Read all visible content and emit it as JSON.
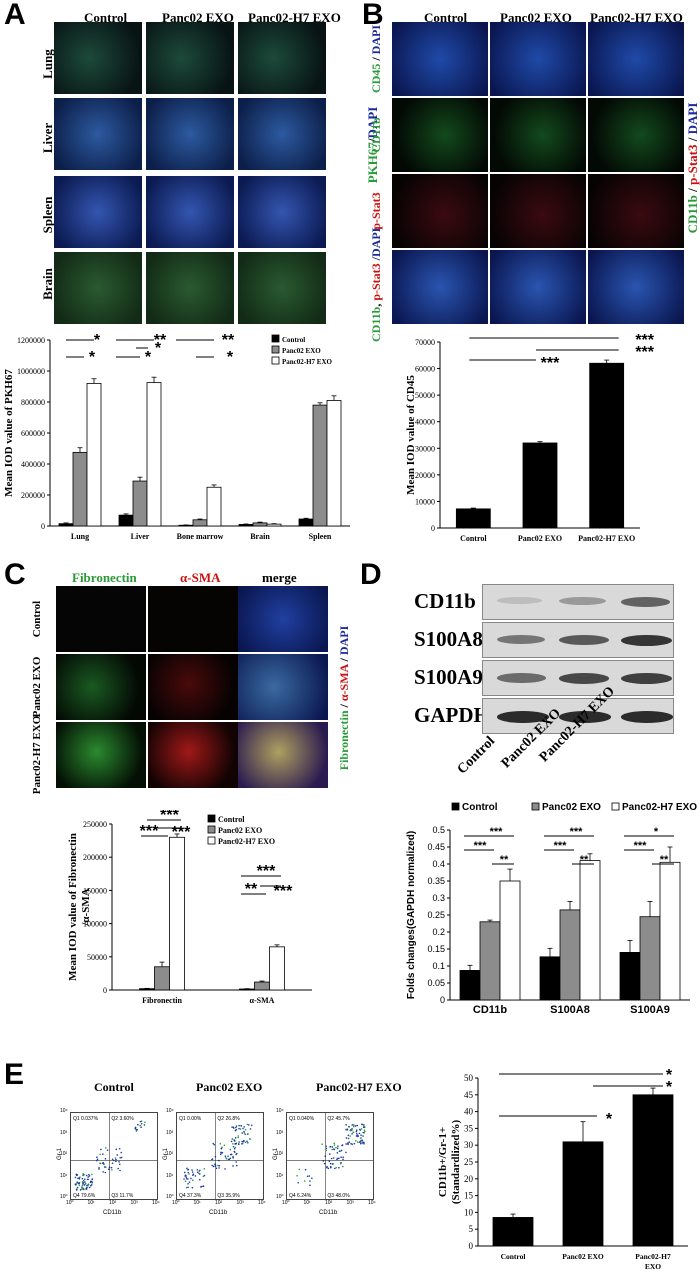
{
  "panel_letters": [
    "A",
    "B",
    "C",
    "D",
    "E"
  ],
  "colors": {
    "control_bar": "#000000",
    "panc02_bar": "#8c8c8c",
    "panc02h7_bar": "#ffffff",
    "pkh67_green": "#2a9a3a",
    "dapi_blue": "#1a2a9a",
    "red_stain": "#cc1111"
  },
  "panel_a": {
    "columns": [
      "Control",
      "Panc02 EXO",
      "Panc02-H7 EXO"
    ],
    "rows": [
      "Lung",
      "Liver",
      "Spleen",
      "Brain"
    ],
    "side_label_green": "PKH67",
    "side_label_sep": "/",
    "side_label_blue": "DAPI"
  },
  "panel_b": {
    "columns": [
      "Control",
      "Panc02 EXO",
      "Panc02-H7 EXO"
    ],
    "rows": [
      {
        "parts": [
          {
            "t": "CD45",
            "c": "#2a9a3a"
          },
          {
            "t": " / ",
            "c": "#000"
          },
          {
            "t": "DAPI",
            "c": "#1a2a9a"
          }
        ]
      },
      {
        "parts": [
          {
            "t": "CD11b",
            "c": "#2a9a3a"
          }
        ]
      },
      {
        "parts": [
          {
            "t": "p-Stat3",
            "c": "#cc1111"
          }
        ]
      },
      {
        "parts": [
          {
            "t": "CD11b",
            "c": "#2a9a3a"
          },
          {
            "t": ", ",
            "c": "#000"
          },
          {
            "t": "p-Stat3",
            "c": "#cc1111"
          },
          {
            "t": " /DAPI",
            "c": "#1a2a9a"
          }
        ]
      }
    ],
    "side_label": [
      {
        "t": "CD11b",
        "c": "#2a9a3a"
      },
      {
        "t": " / ",
        "c": "#000"
      },
      {
        "t": "p-Stat3",
        "c": "#cc1111"
      },
      {
        "t": " / ",
        "c": "#000"
      },
      {
        "t": "DAPI",
        "c": "#1a2a9a"
      }
    ]
  },
  "panel_c": {
    "columns": [
      {
        "label": "Fibronectin",
        "color": "#2a9a3a"
      },
      {
        "label": "α-SMA",
        "color": "#cc1111"
      },
      {
        "label": "merge",
        "color": "#000000"
      }
    ],
    "rows": [
      "Control",
      "Panc02 EXO",
      "Panc02-H7 EXO"
    ],
    "side_label": [
      {
        "t": "Fibronectin",
        "c": "#2a9a3a"
      },
      {
        "t": " / ",
        "c": "#000"
      },
      {
        "t": "α-SMA",
        "c": "#cc1111"
      },
      {
        "t": " / ",
        "c": "#000"
      },
      {
        "t": "DAPI",
        "c": "#1a2a9a"
      }
    ]
  },
  "panel_d": {
    "blot_rows": [
      "CD11b",
      "S100A8",
      "S100A9",
      "GAPDH"
    ],
    "lanes": [
      "Control",
      "Panc02 EXO",
      "Panc02-H7 EXO"
    ]
  },
  "panel_e": {
    "flow_titles": [
      "Control",
      "Panc02 EXO",
      "Panc02-H7 EXO"
    ],
    "quadrant_labels": [
      [
        "Q1 0.037%",
        "Q2 3.60%",
        "Q4 79.6%",
        "Q3 11.7%"
      ],
      [
        "Q1 0.00%",
        "Q2 26.8%",
        "Q4 37.3%",
        "Q3 35.9%"
      ],
      [
        "Q1 0.040%",
        "Q2 45.7%",
        "Q4 6.24%",
        "Q3 48.0%"
      ]
    ],
    "flow_xlabel": "CD11b",
    "flow_ylabel": "Gr-1",
    "flow_ticks": [
      "10⁰",
      "10¹",
      "10²",
      "10³",
      "10⁴"
    ]
  },
  "chart_data": [
    {
      "type": "bar",
      "panel": "A",
      "categories": [
        "Lung",
        "Liver",
        "Bone marrow",
        "Brain",
        "Spleen"
      ],
      "series": [
        {
          "name": "Control",
          "values": [
            15000,
            70000,
            5000,
            10000,
            45000
          ],
          "errors": [
            5000,
            8000,
            2000,
            3000,
            5000
          ]
        },
        {
          "name": "Panc02 EXO",
          "values": [
            475000,
            290000,
            40000,
            20000,
            780000
          ],
          "errors": [
            30000,
            25000,
            5000,
            5000,
            15000
          ]
        },
        {
          "name": "Panc02-H7 EXO",
          "values": [
            920000,
            925000,
            250000,
            12000,
            810000
          ],
          "errors": [
            30000,
            35000,
            15000,
            3000,
            30000
          ]
        }
      ],
      "ylabel": "Mean IOD value of PKH67",
      "ylim": [
        0,
        1200000
      ],
      "yticks": [
        "0",
        "200000",
        "400000",
        "600000",
        "800000",
        "1000000",
        "1200000"
      ],
      "legend_position": "top-right",
      "significance": [
        {
          "text": "*",
          "group": 0,
          "pair": "Control-Panc02-H7",
          "row": 0
        },
        {
          "text": "*",
          "group": 0,
          "pair": "Control-Panc02",
          "row": 1
        },
        {
          "text": "**",
          "group": 1,
          "pair": "Control-Panc02-H7",
          "row": 0
        },
        {
          "text": "*",
          "group": 1,
          "pair": "Panc02-Panc02-H7",
          "row": 1
        },
        {
          "text": "*",
          "group": 1,
          "pair": "Control-Panc02",
          "row": 2
        },
        {
          "text": "**",
          "group": 2,
          "pair": "Control-Panc02-H7",
          "row": 0
        },
        {
          "text": "*",
          "group": 2,
          "pair": "Panc02-Panc02-H7",
          "row": 2
        }
      ]
    },
    {
      "type": "bar",
      "panel": "B",
      "categories": [
        "Control",
        "Panc02 EXO",
        "Panc02-H7 EXO"
      ],
      "values": [
        7200,
        32000,
        62000
      ],
      "errors": [
        300,
        500,
        1200
      ],
      "ylabel": "Mean IOD value of CD45",
      "ylim": [
        0,
        70000
      ],
      "yticks": [
        "0",
        "10000",
        "20000",
        "30000",
        "40000",
        "50000",
        "60000",
        "70000"
      ],
      "significance": [
        "***",
        "***",
        "***"
      ]
    },
    {
      "type": "bar",
      "panel": "C",
      "categories": [
        "Fibronectin",
        "α-SMA"
      ],
      "series": [
        {
          "name": "Control",
          "values": [
            2000,
            1500
          ],
          "errors": [
            500,
            500
          ]
        },
        {
          "name": "Panc02 EXO",
          "values": [
            35000,
            12000
          ],
          "errors": [
            7000,
            1500
          ]
        },
        {
          "name": "Panc02-H7 EXO",
          "values": [
            230000,
            65000
          ],
          "errors": [
            5000,
            3000
          ]
        }
      ],
      "ylabel": "Mean IOD value of Fibronectin /α-SMA",
      "ylim": [
        0,
        250000
      ],
      "yticks": [
        "0",
        "50000",
        "100000",
        "150000",
        "200000",
        "250000"
      ],
      "legend_position": "top-right",
      "significance": [
        "***",
        "***",
        "***",
        "***",
        "**",
        "***"
      ]
    },
    {
      "type": "bar",
      "panel": "D",
      "categories": [
        "CD11b",
        "S100A8",
        "S100A9"
      ],
      "series": [
        {
          "name": "Control",
          "values": [
            0.087,
            0.127,
            0.14
          ],
          "errors": [
            0.015,
            0.025,
            0.035
          ]
        },
        {
          "name": "Panc02 EXO",
          "values": [
            0.23,
            0.265,
            0.245
          ],
          "errors": [
            0.005,
            0.025,
            0.045
          ]
        },
        {
          "name": "Panc02-H7 EXO",
          "values": [
            0.35,
            0.41,
            0.405
          ],
          "errors": [
            0.035,
            0.02,
            0.045
          ]
        }
      ],
      "ylabel": "Folds changes(GAPDH normalized)",
      "ylim": [
        0,
        0.5
      ],
      "yticks": [
        "0",
        "0.05",
        "0.1",
        "0.15",
        "0.2",
        "0.25",
        "0.3",
        "0.35",
        "0.4",
        "0.45",
        "0.5"
      ],
      "legend_position": "top",
      "significance": [
        "***",
        "***",
        "**",
        "***",
        "***",
        "**",
        "*",
        "***",
        "**"
      ]
    },
    {
      "type": "bar",
      "panel": "E",
      "categories": [
        "Control",
        "Panc02 EXO",
        "Panc02-H7 EXO"
      ],
      "values": [
        8.5,
        31,
        45
      ],
      "errors": [
        1,
        6,
        2
      ],
      "ylabel": "CD11b+/Gr-1+ (Standardlized%)",
      "ylim": [
        0,
        50
      ],
      "yticks": [
        "0",
        "5",
        "10",
        "15",
        "20",
        "25",
        "30",
        "35",
        "40",
        "45",
        "50"
      ],
      "significance": [
        "*",
        "*",
        "*"
      ]
    }
  ]
}
